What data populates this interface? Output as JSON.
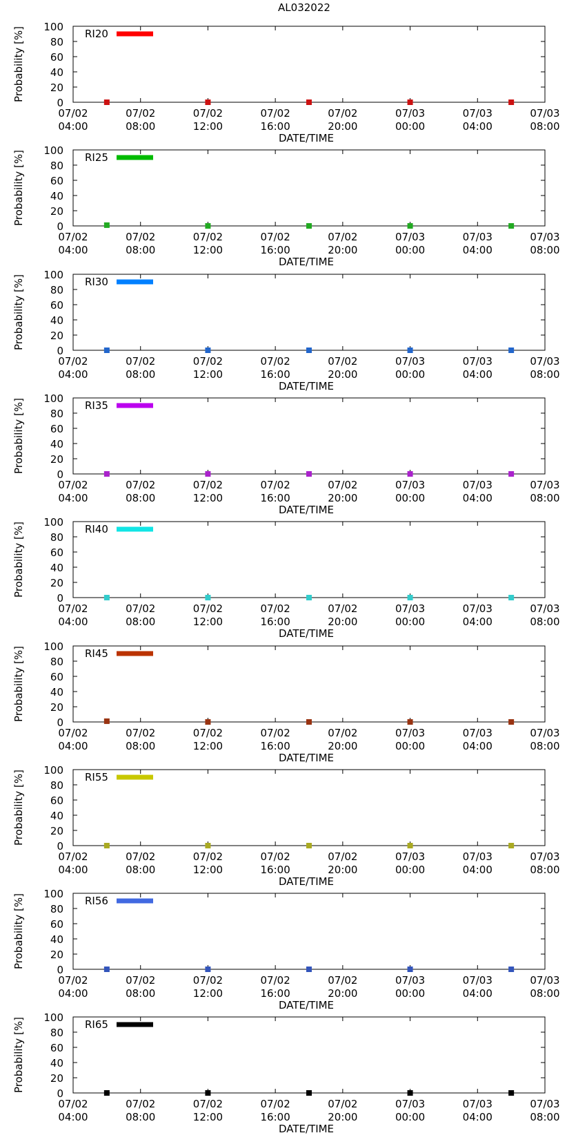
{
  "figure_title": "AL032022",
  "chart_data": [
    {
      "type": "scatter",
      "legend": "RI20",
      "color": "#ff0000",
      "marker_color": "#cc1111",
      "x": [
        "07/02 06:00",
        "07/02 12:00",
        "07/02 18:00",
        "07/03 00:00",
        "07/03 06:00"
      ],
      "values": [
        0,
        0,
        0,
        0,
        0
      ],
      "xlabel": "DATE/TIME",
      "ylabel": "Probability [%]",
      "ylim": [
        0,
        100
      ],
      "yticks": [
        "0",
        "20",
        "40",
        "60",
        "80",
        "100"
      ],
      "xticks": [
        {
          "date": "07/02",
          "time": "04:00"
        },
        {
          "date": "07/02",
          "time": "08:00"
        },
        {
          "date": "07/02",
          "time": "12:00"
        },
        {
          "date": "07/02",
          "time": "16:00"
        },
        {
          "date": "07/02",
          "time": "20:00"
        },
        {
          "date": "07/03",
          "time": "00:00"
        },
        {
          "date": "07/03",
          "time": "04:00"
        },
        {
          "date": "07/03",
          "time": "08:00"
        }
      ]
    },
    {
      "type": "scatter",
      "legend": "RI25",
      "color": "#00bb00",
      "marker_color": "#22aa22",
      "x": [
        "07/02 06:00",
        "07/02 12:00",
        "07/02 18:00",
        "07/03 00:00",
        "07/03 06:00"
      ],
      "values": [
        1,
        0,
        0,
        0,
        0
      ],
      "xlabel": "DATE/TIME",
      "ylabel": "Probability [%]",
      "ylim": [
        0,
        100
      ],
      "yticks": [
        "0",
        "20",
        "40",
        "60",
        "80",
        "100"
      ],
      "xticks": [
        {
          "date": "07/02",
          "time": "04:00"
        },
        {
          "date": "07/02",
          "time": "08:00"
        },
        {
          "date": "07/02",
          "time": "12:00"
        },
        {
          "date": "07/02",
          "time": "16:00"
        },
        {
          "date": "07/02",
          "time": "20:00"
        },
        {
          "date": "07/03",
          "time": "00:00"
        },
        {
          "date": "07/03",
          "time": "04:00"
        },
        {
          "date": "07/03",
          "time": "08:00"
        }
      ]
    },
    {
      "type": "scatter",
      "legend": "RI30",
      "color": "#0080ff",
      "marker_color": "#2266cc",
      "x": [
        "07/02 06:00",
        "07/02 12:00",
        "07/02 18:00",
        "07/03 00:00",
        "07/03 06:00"
      ],
      "values": [
        0,
        0,
        0,
        0,
        0
      ],
      "xlabel": "DATE/TIME",
      "ylabel": "Probability [%]",
      "ylim": [
        0,
        100
      ],
      "yticks": [
        "0",
        "20",
        "40",
        "60",
        "80",
        "100"
      ],
      "xticks": [
        {
          "date": "07/02",
          "time": "04:00"
        },
        {
          "date": "07/02",
          "time": "08:00"
        },
        {
          "date": "07/02",
          "time": "12:00"
        },
        {
          "date": "07/02",
          "time": "16:00"
        },
        {
          "date": "07/02",
          "time": "20:00"
        },
        {
          "date": "07/03",
          "time": "00:00"
        },
        {
          "date": "07/03",
          "time": "04:00"
        },
        {
          "date": "07/03",
          "time": "08:00"
        }
      ]
    },
    {
      "type": "scatter",
      "legend": "RI35",
      "color": "#bb00ee",
      "marker_color": "#aa22cc",
      "x": [
        "07/02 06:00",
        "07/02 12:00",
        "07/02 18:00",
        "07/03 00:00",
        "07/03 06:00"
      ],
      "values": [
        0,
        0,
        0,
        0,
        0
      ],
      "xlabel": "DATE/TIME",
      "ylabel": "Probability [%]",
      "ylim": [
        0,
        100
      ],
      "yticks": [
        "0",
        "20",
        "40",
        "60",
        "80",
        "100"
      ],
      "xticks": [
        {
          "date": "07/02",
          "time": "04:00"
        },
        {
          "date": "07/02",
          "time": "08:00"
        },
        {
          "date": "07/02",
          "time": "12:00"
        },
        {
          "date": "07/02",
          "time": "16:00"
        },
        {
          "date": "07/02",
          "time": "20:00"
        },
        {
          "date": "07/03",
          "time": "00:00"
        },
        {
          "date": "07/03",
          "time": "04:00"
        },
        {
          "date": "07/03",
          "time": "08:00"
        }
      ]
    },
    {
      "type": "scatter",
      "legend": "RI40",
      "color": "#11e5e5",
      "marker_color": "#33cccc",
      "x": [
        "07/02 06:00",
        "07/02 12:00",
        "07/02 18:00",
        "07/03 00:00",
        "07/03 06:00"
      ],
      "values": [
        0,
        0,
        0,
        0,
        0
      ],
      "xlabel": "DATE/TIME",
      "ylabel": "Probability [%]",
      "ylim": [
        0,
        100
      ],
      "yticks": [
        "0",
        "20",
        "40",
        "60",
        "80",
        "100"
      ],
      "xticks": [
        {
          "date": "07/02",
          "time": "04:00"
        },
        {
          "date": "07/02",
          "time": "08:00"
        },
        {
          "date": "07/02",
          "time": "12:00"
        },
        {
          "date": "07/02",
          "time": "16:00"
        },
        {
          "date": "07/02",
          "time": "20:00"
        },
        {
          "date": "07/03",
          "time": "00:00"
        },
        {
          "date": "07/03",
          "time": "04:00"
        },
        {
          "date": "07/03",
          "time": "08:00"
        }
      ]
    },
    {
      "type": "scatter",
      "legend": "RI45",
      "color": "#bb3300",
      "marker_color": "#993311",
      "x": [
        "07/02 06:00",
        "07/02 12:00",
        "07/02 18:00",
        "07/03 00:00",
        "07/03 06:00"
      ],
      "values": [
        1,
        0,
        0,
        0,
        0
      ],
      "xlabel": "DATE/TIME",
      "ylabel": "Probability [%]",
      "ylim": [
        0,
        100
      ],
      "yticks": [
        "0",
        "20",
        "40",
        "60",
        "80",
        "100"
      ],
      "xticks": [
        {
          "date": "07/02",
          "time": "04:00"
        },
        {
          "date": "07/02",
          "time": "08:00"
        },
        {
          "date": "07/02",
          "time": "12:00"
        },
        {
          "date": "07/02",
          "time": "16:00"
        },
        {
          "date": "07/02",
          "time": "20:00"
        },
        {
          "date": "07/03",
          "time": "00:00"
        },
        {
          "date": "07/03",
          "time": "04:00"
        },
        {
          "date": "07/03",
          "time": "08:00"
        }
      ]
    },
    {
      "type": "scatter",
      "legend": "RI55",
      "color": "#c8c800",
      "marker_color": "#aaaa22",
      "x": [
        "07/02 06:00",
        "07/02 12:00",
        "07/02 18:00",
        "07/03 00:00",
        "07/03 06:00"
      ],
      "values": [
        0,
        0,
        0,
        0,
        0
      ],
      "xlabel": "DATE/TIME",
      "ylabel": "Probability [%]",
      "ylim": [
        0,
        100
      ],
      "yticks": [
        "0",
        "20",
        "40",
        "60",
        "80",
        "100"
      ],
      "xticks": [
        {
          "date": "07/02",
          "time": "04:00"
        },
        {
          "date": "07/02",
          "time": "08:00"
        },
        {
          "date": "07/02",
          "time": "12:00"
        },
        {
          "date": "07/02",
          "time": "16:00"
        },
        {
          "date": "07/02",
          "time": "20:00"
        },
        {
          "date": "07/03",
          "time": "00:00"
        },
        {
          "date": "07/03",
          "time": "04:00"
        },
        {
          "date": "07/03",
          "time": "08:00"
        }
      ]
    },
    {
      "type": "scatter",
      "legend": "RI56",
      "color": "#4169e1",
      "marker_color": "#3355bb",
      "x": [
        "07/02 06:00",
        "07/02 12:00",
        "07/02 18:00",
        "07/03 00:00",
        "07/03 06:00"
      ],
      "values": [
        0,
        0,
        0,
        0,
        0
      ],
      "xlabel": "DATE/TIME",
      "ylabel": "Probability [%]",
      "ylim": [
        0,
        100
      ],
      "yticks": [
        "0",
        "20",
        "40",
        "60",
        "80",
        "100"
      ],
      "xticks": [
        {
          "date": "07/02",
          "time": "04:00"
        },
        {
          "date": "07/02",
          "time": "08:00"
        },
        {
          "date": "07/02",
          "time": "12:00"
        },
        {
          "date": "07/02",
          "time": "16:00"
        },
        {
          "date": "07/02",
          "time": "20:00"
        },
        {
          "date": "07/03",
          "time": "00:00"
        },
        {
          "date": "07/03",
          "time": "04:00"
        },
        {
          "date": "07/03",
          "time": "08:00"
        }
      ]
    },
    {
      "type": "scatter",
      "legend": "RI65",
      "color": "#000000",
      "marker_color": "#000000",
      "x": [
        "07/02 06:00",
        "07/02 12:00",
        "07/02 18:00",
        "07/03 00:00",
        "07/03 06:00"
      ],
      "values": [
        0,
        0,
        0,
        0,
        0
      ],
      "xlabel": "DATE/TIME",
      "ylabel": "Probability [%]",
      "ylim": [
        0,
        100
      ],
      "yticks": [
        "0",
        "20",
        "40",
        "60",
        "80",
        "100"
      ],
      "xticks": [
        {
          "date": "07/02",
          "time": "04:00"
        },
        {
          "date": "07/02",
          "time": "08:00"
        },
        {
          "date": "07/02",
          "time": "12:00"
        },
        {
          "date": "07/02",
          "time": "16:00"
        },
        {
          "date": "07/02",
          "time": "20:00"
        },
        {
          "date": "07/03",
          "time": "00:00"
        },
        {
          "date": "07/03",
          "time": "04:00"
        },
        {
          "date": "07/03",
          "time": "08:00"
        }
      ]
    }
  ]
}
